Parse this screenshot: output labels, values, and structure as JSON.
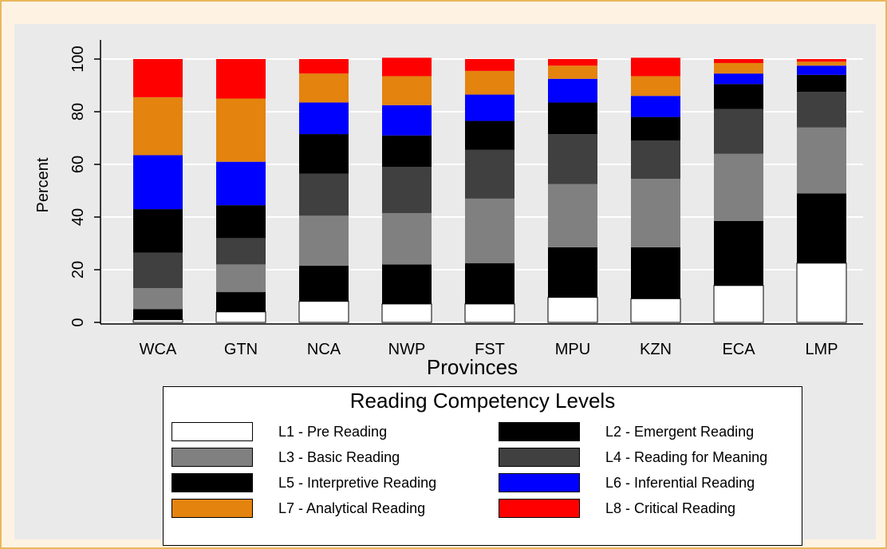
{
  "chart_data": {
    "type": "bar",
    "stacked": true,
    "xlabel": "Provinces",
    "ylabel": "Percent",
    "ylim": [
      0,
      100
    ],
    "yticks": [
      0,
      20,
      40,
      60,
      80,
      100
    ],
    "grid": true,
    "categories": [
      "WCA",
      "GTN",
      "NCA",
      "NWP",
      "FST",
      "MPU",
      "KZN",
      "ECA",
      "LMP"
    ],
    "series": [
      {
        "name": "L1 - Pre Reading",
        "color": "#ffffff",
        "values": [
          1,
          4,
          8,
          7,
          7,
          9.5,
          9,
          14,
          22.5
        ]
      },
      {
        "name": "L2 - Emergent Reading",
        "color": "#000000",
        "values": [
          4,
          7.5,
          13.5,
          15,
          15.5,
          19,
          19.5,
          24.5,
          26.5
        ]
      },
      {
        "name": "L3 - Basic Reading",
        "color": "#808080",
        "values": [
          8,
          10.5,
          19,
          19.5,
          24.5,
          24,
          26,
          25.5,
          25
        ]
      },
      {
        "name": "L4 - Reading for Meaning",
        "color": "#404040",
        "values": [
          13.5,
          10,
          16,
          17.5,
          18.5,
          19,
          14.5,
          17,
          13.5
        ]
      },
      {
        "name": "L5 - Interpretive Reading",
        "color": "#000000",
        "values": [
          16.5,
          12.5,
          15,
          12,
          11,
          12,
          9,
          9.5,
          6.5
        ]
      },
      {
        "name": "L6 - Inferential Reading",
        "color": "#0000ff",
        "values": [
          20.5,
          16.5,
          12,
          11.5,
          10,
          9,
          8,
          4,
          3.5
        ]
      },
      {
        "name": "L7 - Analytical Reading",
        "color": "#e4830e",
        "values": [
          22,
          24,
          11,
          11,
          9,
          5,
          7.5,
          4,
          1.5
        ]
      },
      {
        "name": "L8 - Critical Reading",
        "color": "#ff0000",
        "values": [
          14.5,
          15,
          5.5,
          7,
          4.5,
          2.5,
          7,
          1.5,
          1
        ]
      }
    ],
    "legend": {
      "title": "Reading Competency Levels",
      "position": "bottom",
      "columns": 2
    }
  }
}
